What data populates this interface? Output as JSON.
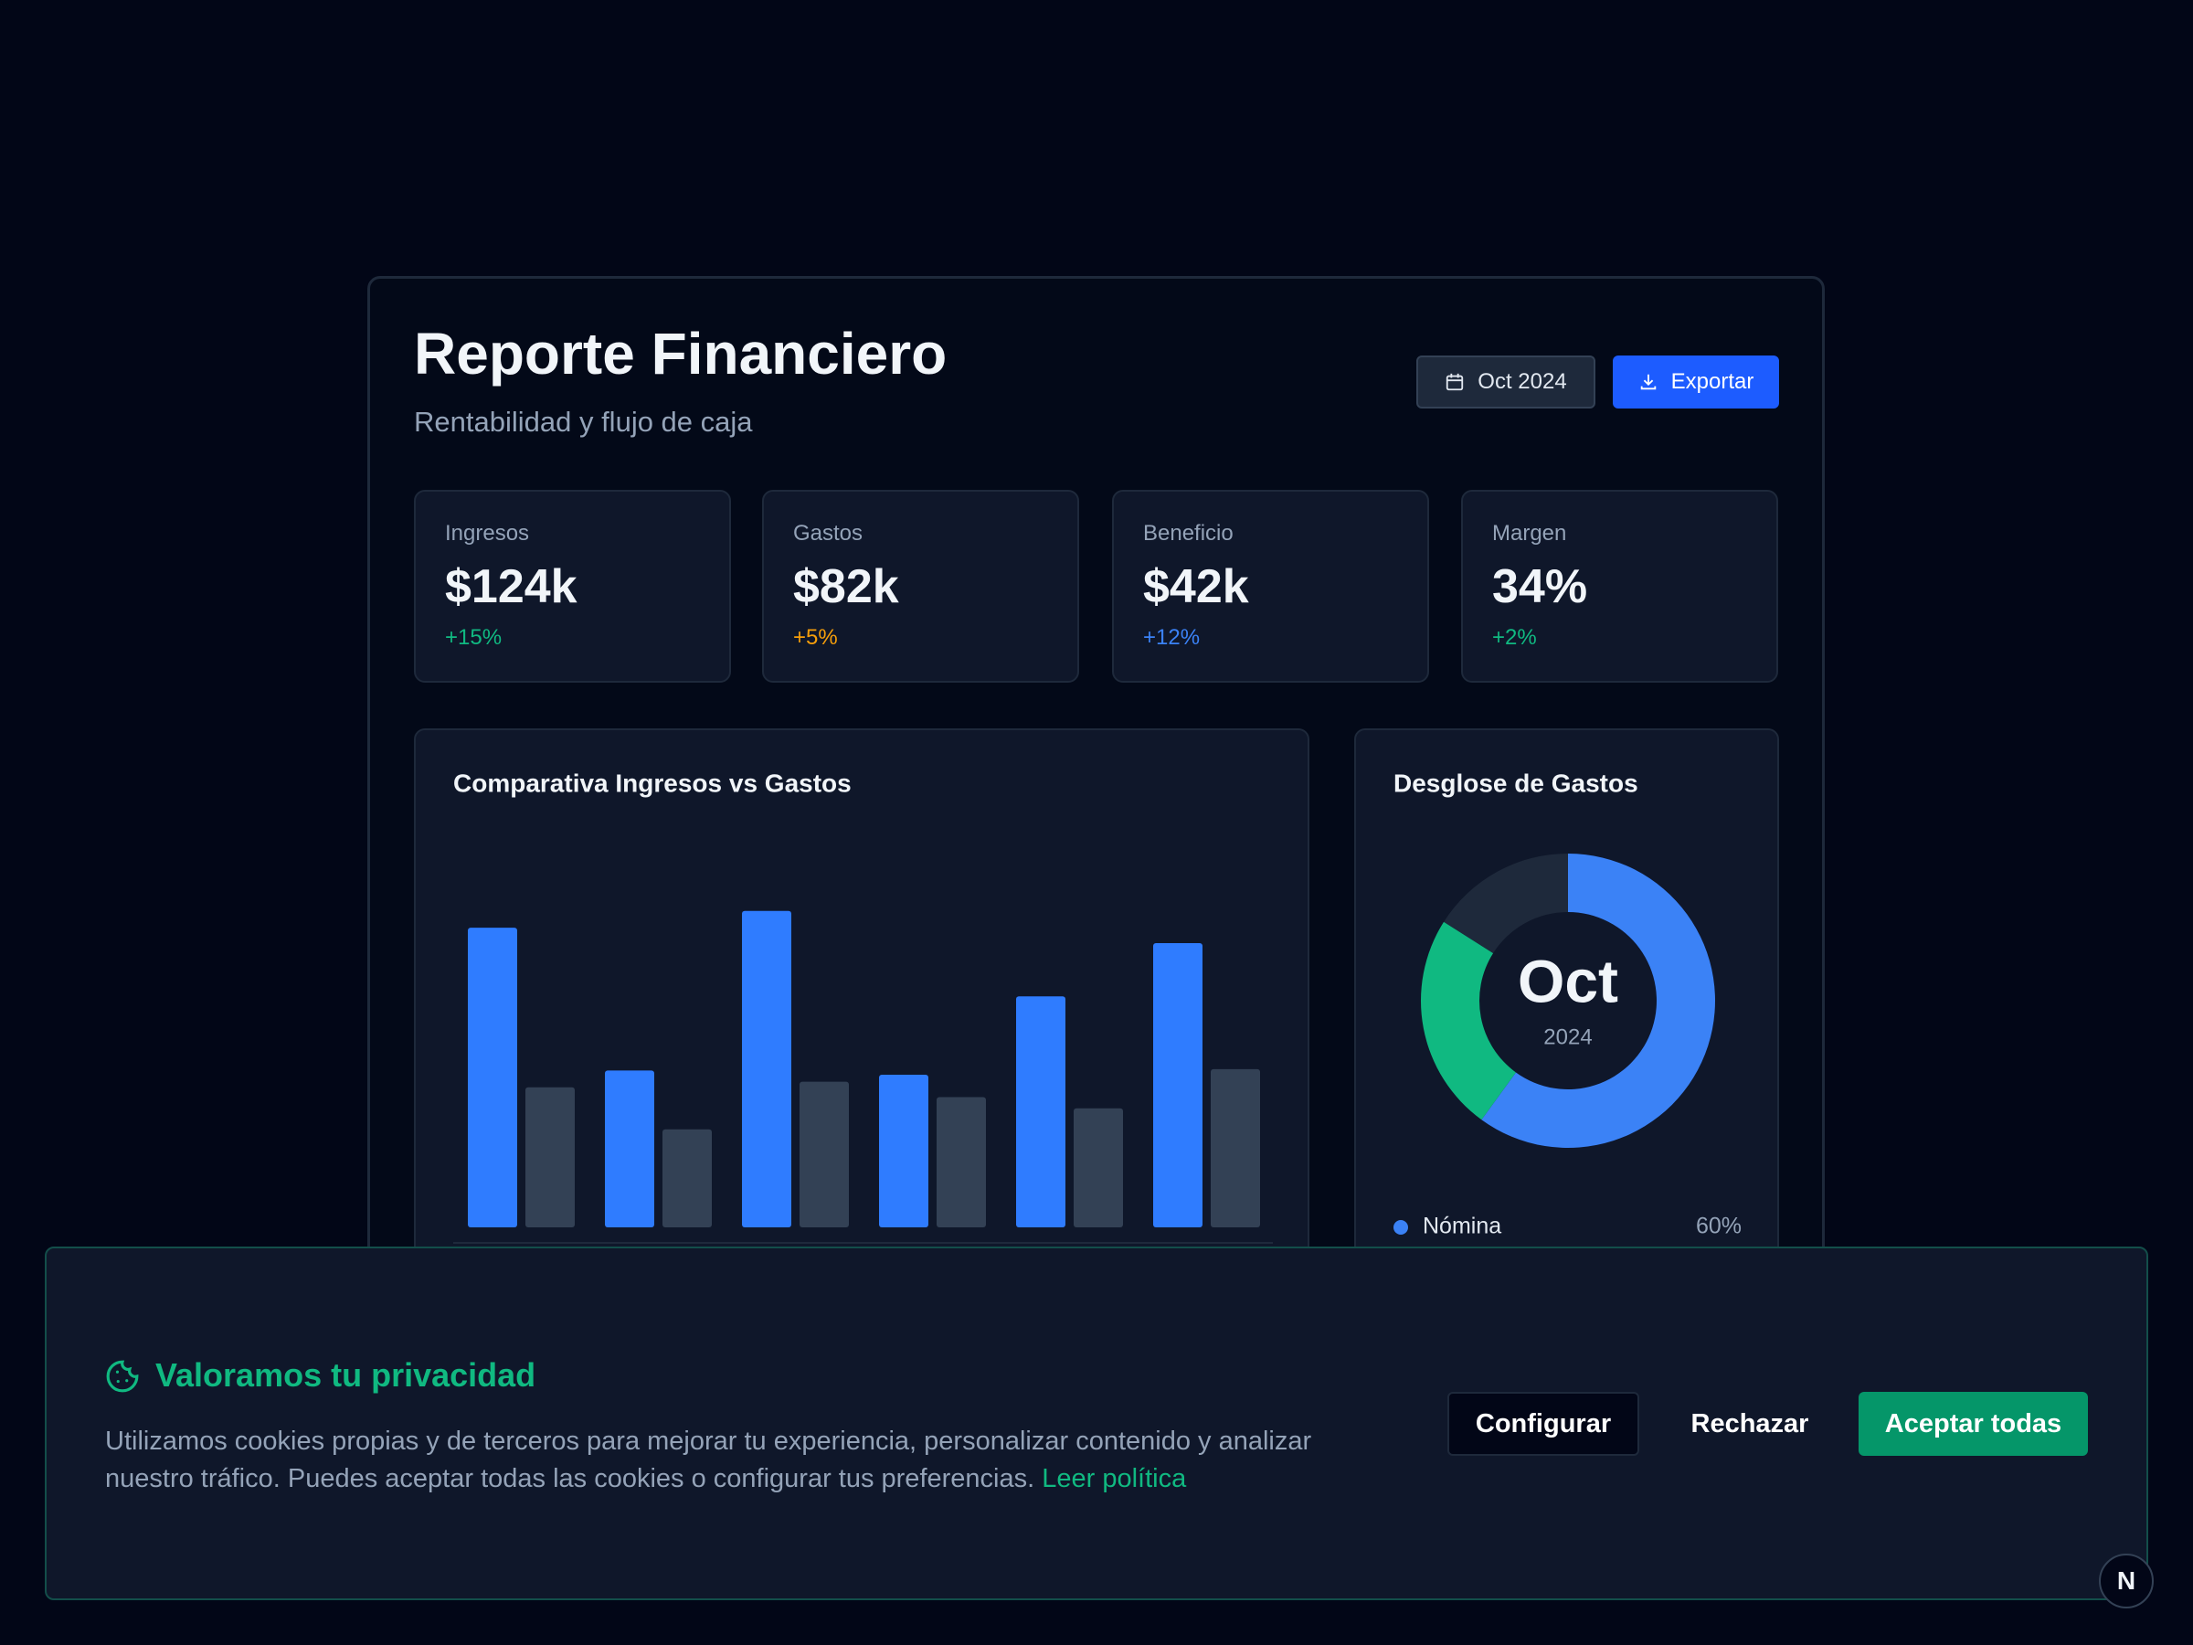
{
  "header": {
    "title": "Reporte Financiero",
    "subtitle": "Rentabilidad y flujo de caja",
    "period_button": "Oct 2024",
    "export_button": "Exportar"
  },
  "kpis": [
    {
      "label": "Ingresos",
      "value": "$124k",
      "change": "+15%",
      "color": "#10b981"
    },
    {
      "label": "Gastos",
      "value": "$82k",
      "change": "+5%",
      "color": "#f59e0b"
    },
    {
      "label": "Beneficio",
      "value": "$42k",
      "change": "+12%",
      "color": "#3b82f6"
    },
    {
      "label": "Margen",
      "value": "34%",
      "change": "+2%",
      "color": "#10b981"
    }
  ],
  "chart_data": [
    {
      "type": "bar",
      "title": "Comparativa Ingresos vs Gastos",
      "categories": [
        null,
        null,
        null,
        null,
        null,
        null
      ],
      "series": [
        {
          "color": "#2f7cff",
          "values": [
            214,
            112,
            226,
            109,
            165,
            203
          ]
        },
        {
          "color": "#334155",
          "values": [
            100,
            70,
            104,
            93,
            85,
            113
          ]
        }
      ],
      "ylim": [
        0,
        250
      ]
    },
    {
      "type": "pie",
      "title": "Desglose de Gastos",
      "center_label": "Oct",
      "center_sublabel": "2024",
      "categories": [
        "Nómina",
        null,
        null
      ],
      "values": [
        60,
        24,
        16
      ],
      "value_labels": [
        "60%",
        null,
        null
      ],
      "colors": [
        "#3b82f6",
        "#10b981",
        "#1e293b"
      ]
    }
  ],
  "cookie_banner": {
    "title": "Valoramos tu privacidad",
    "text": "Utilizamos cookies propias y de terceros para mejorar tu experiencia, personalizar contenido y analizar nuestro tráfico. Puedes aceptar todas las cookies o configurar tus preferencias.",
    "link": "Leer política",
    "buttons": [
      "Configurar",
      "Rechazar",
      "Aceptar todas"
    ]
  },
  "badge": "N"
}
